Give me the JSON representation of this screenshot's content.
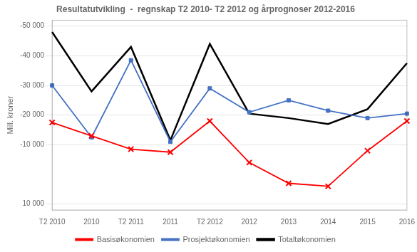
{
  "chart_data": {
    "type": "line",
    "title": "Resultatutvikling  -  regnskap T2 2010- T2 2012 og årprognoser 2012-2016",
    "ylabel": "Mill. kroner",
    "categories": [
      "T2 2010",
      "2010",
      "T2 2011",
      "2011",
      "T2 2012",
      "2012",
      "2013",
      "2014",
      "2015",
      "2016"
    ],
    "series": [
      {
        "name": "Basisøkonomien",
        "color": "#FF0000",
        "marker": "x",
        "line_style": "solid",
        "values": [
          -17500,
          -13000,
          -8500,
          -7500,
          -18000,
          -4000,
          3000,
          4000,
          -8000,
          -18000
        ]
      },
      {
        "name": "Prosjektøkonomien",
        "color": "#4472C4",
        "marker": "square",
        "line_style": "solid",
        "values": [
          -30000,
          -12500,
          -38500,
          -11000,
          -29000,
          -21000,
          -25000,
          -21500,
          -19000,
          -20500
        ]
      },
      {
        "name": "Totaltøkonomien",
        "color": "#000000",
        "marker": "none",
        "line_style": "solid",
        "values": [
          -48000,
          -28000,
          -43000,
          -11500,
          -44000,
          -20500,
          -19000,
          -17000,
          -22000,
          -37500
        ]
      }
    ],
    "ylim": [
      12000,
      -52000
    ],
    "yticks": [
      {
        "value": -50000,
        "label": "-50 000"
      },
      {
        "value": -40000,
        "label": "-40 000"
      },
      {
        "value": -30000,
        "label": "-30 000"
      },
      {
        "value": -20000,
        "label": "-20 000"
      },
      {
        "value": -10000,
        "label": "-10 000"
      },
      {
        "value": 10000,
        "label": "10 000"
      }
    ],
    "grid": true,
    "legend": "bottom"
  }
}
